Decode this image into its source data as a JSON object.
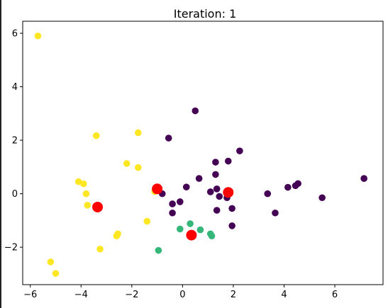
{
  "chart_data": {
    "type": "scatter",
    "title": "Iteration: 1",
    "xlabel": "",
    "ylabel": "",
    "xlim": [
      -6.3,
      7.9
    ],
    "ylim": [
      -3.4,
      6.45
    ],
    "x_ticks": [
      -6,
      -4,
      -2,
      0,
      2,
      4,
      6
    ],
    "y_ticks": [
      -2,
      0,
      2,
      4,
      6
    ],
    "grid": false,
    "clusters": [
      {
        "color": "#440154",
        "points": [
          [
            0.5,
            3.1
          ],
          [
            -0.55,
            2.08
          ],
          [
            2.25,
            1.6
          ],
          [
            1.3,
            1.18
          ],
          [
            1.8,
            1.22
          ],
          [
            1.3,
            0.72
          ],
          [
            0.65,
            0.57
          ],
          [
            0.15,
            0.25
          ],
          [
            1.1,
            0.07
          ],
          [
            1.35,
            0.18
          ],
          [
            1.45,
            -0.1
          ],
          [
            1.75,
            -0.15
          ],
          [
            -0.8,
            0.0
          ],
          [
            -0.4,
            -0.38
          ],
          [
            -0.1,
            -0.3
          ],
          [
            -0.4,
            -0.72
          ],
          [
            1.35,
            -0.62
          ],
          [
            1.95,
            -0.55
          ],
          [
            1.95,
            -1.2
          ],
          [
            3.35,
            0.0
          ],
          [
            4.15,
            0.24
          ],
          [
            4.45,
            0.3
          ],
          [
            4.55,
            0.38
          ],
          [
            3.65,
            -0.72
          ],
          [
            5.5,
            -0.15
          ],
          [
            7.15,
            0.57
          ]
        ]
      },
      {
        "color": "#35b779",
        "points": [
          [
            -0.1,
            -1.32
          ],
          [
            0.3,
            -1.12
          ],
          [
            0.7,
            -1.35
          ],
          [
            1.1,
            -1.5
          ],
          [
            1.15,
            -1.58
          ],
          [
            -0.95,
            -2.12
          ]
        ]
      },
      {
        "color": "#fde725",
        "points": [
          [
            -5.7,
            5.9
          ],
          [
            -3.4,
            2.17
          ],
          [
            -1.75,
            2.28
          ],
          [
            -2.2,
            1.13
          ],
          [
            -1.75,
            0.98
          ],
          [
            -4.1,
            0.45
          ],
          [
            -3.9,
            0.37
          ],
          [
            -3.8,
            0.0
          ],
          [
            -3.75,
            -0.43
          ],
          [
            -1.1,
            0.08
          ],
          [
            -1.4,
            -1.03
          ],
          [
            -2.55,
            -1.5
          ],
          [
            -2.6,
            -1.58
          ],
          [
            -3.25,
            -2.07
          ],
          [
            -5.2,
            -2.55
          ],
          [
            -5.0,
            -2.98
          ]
        ]
      }
    ],
    "centroids": {
      "color": "#ff0000",
      "points": [
        [
          -3.35,
          -0.5
        ],
        [
          -1.0,
          0.18
        ],
        [
          1.8,
          0.05
        ],
        [
          0.35,
          -1.55
        ]
      ]
    }
  }
}
